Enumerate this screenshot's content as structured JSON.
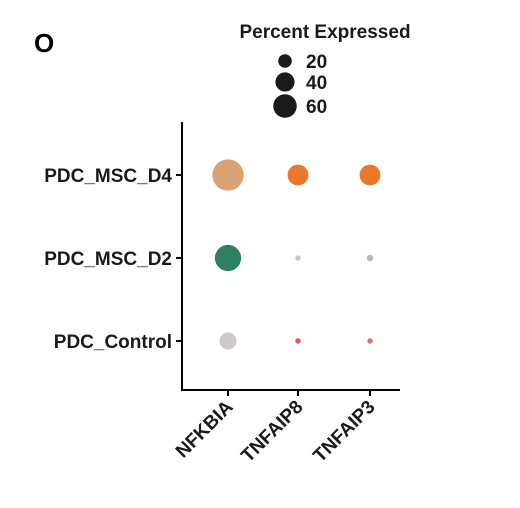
{
  "panel_label": "O",
  "chart_data": {
    "type": "scatter",
    "subtype": "dot-plot",
    "categories_x": [
      "NFKBIA",
      "TNFAIP8",
      "TNFAIP3"
    ],
    "categories_y": [
      "PDC_MSC_D4",
      "PDC_MSC_D2",
      "PDC_Control"
    ],
    "points": [
      {
        "gene": "NFKBIA",
        "group": "PDC_MSC_D4",
        "percent_expressed": 68,
        "color": "#d8a274"
      },
      {
        "gene": "TNFAIP8",
        "group": "PDC_MSC_D4",
        "percent_expressed": 30,
        "color": "#e8792a"
      },
      {
        "gene": "TNFAIP3",
        "group": "PDC_MSC_D4",
        "percent_expressed": 30,
        "color": "#e8792a"
      },
      {
        "gene": "NFKBIA",
        "group": "PDC_MSC_D2",
        "percent_expressed": 48,
        "color": "#2e8060"
      },
      {
        "gene": "TNFAIP8",
        "group": "PDC_MSC_D2",
        "percent_expressed": 2,
        "color": "#c4c4c4"
      },
      {
        "gene": "TNFAIP3",
        "group": "PDC_MSC_D2",
        "percent_expressed": 3,
        "color": "#b8b8b8"
      },
      {
        "gene": "NFKBIA",
        "group": "PDC_Control",
        "percent_expressed": 20,
        "color": "#cfc8cb"
      },
      {
        "gene": "TNFAIP8",
        "group": "PDC_Control",
        "percent_expressed": 2,
        "color": "#e05a4a"
      },
      {
        "gene": "TNFAIP3",
        "group": "PDC_Control",
        "percent_expressed": 2,
        "color": "#e07060"
      }
    ],
    "size_legend": {
      "title": "Percent Expressed",
      "entries": [
        {
          "label": "20",
          "value": 20
        },
        {
          "label": "40",
          "value": 40
        },
        {
          "label": "60",
          "value": 60
        }
      ],
      "placement": "top"
    },
    "xlabel": "",
    "ylabel": "",
    "grid": false
  }
}
